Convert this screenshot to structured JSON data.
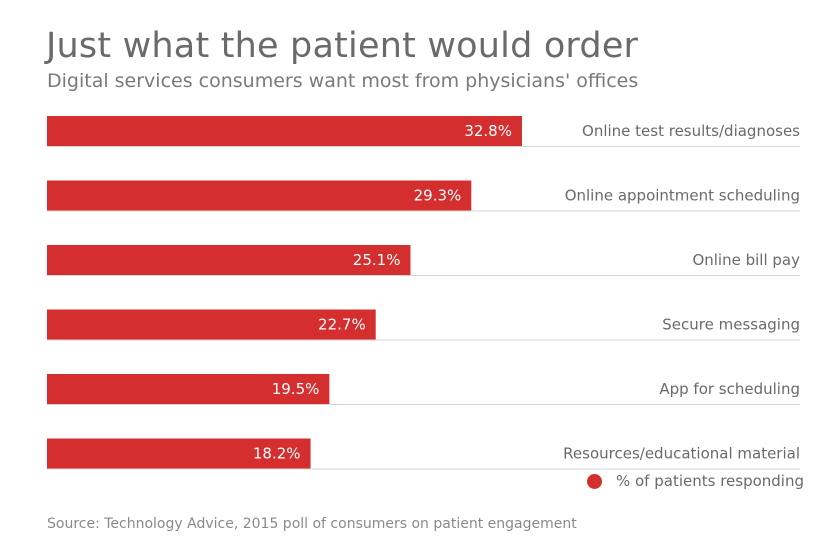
{
  "chart_data": {
    "type": "bar",
    "orientation": "horizontal",
    "title": "Just what the patient would order",
    "subtitle": "Digital services consumers want most from physicians' offices",
    "categories": [
      "Online test results/diagnoses",
      "Online appointment scheduling",
      "Online bill pay",
      "Secure messaging",
      "App for scheduling",
      "Resources/educational material"
    ],
    "values": [
      32.8,
      29.3,
      25.1,
      22.7,
      19.5,
      18.2
    ],
    "value_labels": [
      "32.8%",
      "29.3%",
      "25.1%",
      "22.7%",
      "19.5%",
      "18.2%"
    ],
    "unit": "%",
    "xlim": [
      0,
      52
    ],
    "legend": {
      "label": "% of patients responding",
      "position": "bottom-right"
    },
    "source": "Source: Technology Advice, 2015 poll of consumers on patient engagement"
  },
  "colors": {
    "bar": "#d42e2e"
  }
}
